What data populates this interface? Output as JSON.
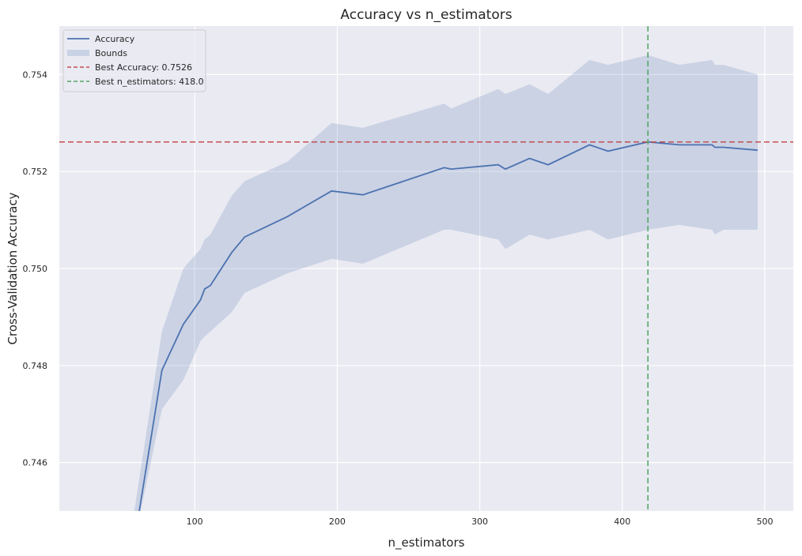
{
  "chart_data": {
    "type": "line",
    "title": "Accuracy vs n_estimators",
    "xlabel": "n_estimators",
    "ylabel": "Cross-Validation Accuracy",
    "xlim": [
      5,
      520
    ],
    "ylim": [
      0.745,
      0.755
    ],
    "x_ticks": [
      100,
      200,
      300,
      400,
      500
    ],
    "y_ticks": [
      0.746,
      0.748,
      0.75,
      0.752,
      0.754
    ],
    "x_tick_labels": [
      "100",
      "200",
      "300",
      "400",
      "500"
    ],
    "y_tick_labels": [
      "0.746",
      "0.748",
      "0.750",
      "0.752",
      "0.754"
    ],
    "grid": true,
    "legend_position": "top-left",
    "colors": {
      "background": "#eaeaf2",
      "grid": "#ffffff",
      "accuracy": "#4c72b0",
      "bounds": "#4c72b0",
      "best_accuracy": "#c44e52",
      "best_n_estimators": "#55a868"
    },
    "legend": [
      {
        "label": "Accuracy",
        "kind": "line",
        "color": "#4c72b0"
      },
      {
        "label": "Bounds",
        "kind": "patch",
        "color": "#4c72b0"
      },
      {
        "label": "Best Accuracy: 0.7526",
        "kind": "dashed",
        "color": "#c44e52"
      },
      {
        "label": "Best n_estimators: 418.0",
        "kind": "dashed",
        "color": "#55a868"
      }
    ],
    "series": [
      {
        "name": "Accuracy",
        "x": [
          60,
          77,
          92,
          104,
          107,
          111,
          126,
          135,
          165,
          196,
          218,
          275,
          280,
          313,
          318,
          335,
          348,
          377,
          390,
          418,
          440,
          463,
          465,
          471,
          495
        ],
        "y": [
          0.7448,
          0.7479,
          0.74885,
          0.74935,
          0.74958,
          0.74965,
          0.75033,
          0.75065,
          0.75107,
          0.7516,
          0.75152,
          0.75208,
          0.75205,
          0.75214,
          0.75205,
          0.75227,
          0.75214,
          0.75255,
          0.75242,
          0.75261,
          0.75255,
          0.75255,
          0.7525,
          0.7525,
          0.75244
        ]
      }
    ],
    "bounds": {
      "name": "Bounds",
      "x": [
        55,
        77,
        92,
        104,
        107,
        111,
        126,
        135,
        165,
        196,
        218,
        275,
        280,
        313,
        318,
        335,
        348,
        377,
        390,
        418,
        440,
        463,
        465,
        471,
        495
      ],
      "upper": [
        0.7445,
        0.7487,
        0.75,
        0.7504,
        0.7506,
        0.7507,
        0.7515,
        0.7518,
        0.7522,
        0.753,
        0.7529,
        0.7534,
        0.7533,
        0.7537,
        0.7536,
        0.7538,
        0.7536,
        0.7543,
        0.7542,
        0.7544,
        0.7542,
        0.7543,
        0.7542,
        0.7542,
        0.754
      ],
      "lower": [
        0.744,
        0.7471,
        0.7477,
        0.7485,
        0.7486,
        0.7487,
        0.7491,
        0.7495,
        0.7499,
        0.7502,
        0.7501,
        0.7508,
        0.7508,
        0.7506,
        0.7504,
        0.7507,
        0.7506,
        0.7508,
        0.7506,
        0.7508,
        0.7509,
        0.7508,
        0.7507,
        0.7508,
        0.7508
      ]
    },
    "hlines": [
      {
        "name": "Best Accuracy: 0.7526",
        "y": 0.75261
      }
    ],
    "vlines": [
      {
        "name": "Best n_estimators: 418.0",
        "x": 418
      }
    ]
  }
}
